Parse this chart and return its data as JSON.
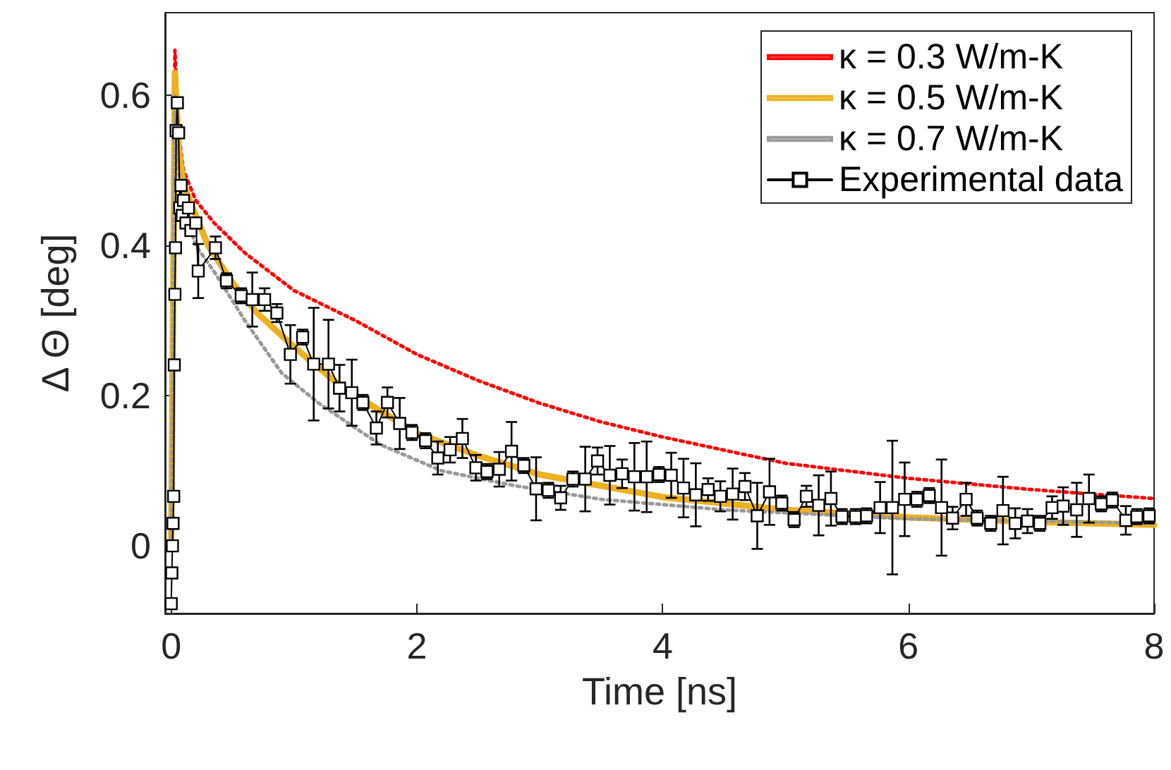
{
  "chart_data": {
    "type": "line",
    "xlabel": "Time [ns]",
    "ylabel": "Δ Θ [deg]",
    "xlim": [
      -0.05,
      8
    ],
    "xticks": [
      0,
      2,
      4,
      6,
      8
    ],
    "ylim": [
      -0.09,
      0.71
    ],
    "yticks": [
      0,
      0.2,
      0.4,
      0.6
    ],
    "grid": false,
    "legend": "top right",
    "series": [
      {
        "name": "κ = 0.3 W/m-K",
        "color": "#ff0000",
        "line_style": "dotted",
        "marker": "none",
        "x": [
          0,
          0.03,
          0.06,
          0.1,
          0.2,
          0.35,
          0.6,
          1,
          1.5,
          2,
          2.5,
          3,
          3.5,
          4,
          5,
          6,
          7,
          8
        ],
        "values": [
          0,
          0.66,
          0.55,
          0.5,
          0.46,
          0.43,
          0.39,
          0.34,
          0.3,
          0.255,
          0.22,
          0.19,
          0.165,
          0.145,
          0.11,
          0.09,
          0.075,
          0.063
        ]
      },
      {
        "name": "κ = 0.5 W/m-K",
        "color": "#edb120",
        "line_style": "solid",
        "marker": "none",
        "x": [
          0,
          0.03,
          0.06,
          0.1,
          0.2,
          0.3,
          0.5,
          0.7,
          1,
          1.4,
          2,
          2.5,
          3,
          4,
          5,
          6,
          7,
          8
        ],
        "values": [
          0,
          0.63,
          0.53,
          0.48,
          0.44,
          0.4,
          0.35,
          0.31,
          0.265,
          0.21,
          0.15,
          0.12,
          0.095,
          0.065,
          0.048,
          0.038,
          0.032,
          0.028
        ]
      },
      {
        "name": "κ = 0.7 W/m-K",
        "color": "#999999",
        "line_style": "dotted",
        "marker": "none",
        "x": [
          0,
          0.03,
          0.06,
          0.1,
          0.2,
          0.35,
          0.6,
          0.9,
          1.2,
          1.7,
          2.2,
          2.8,
          3.5,
          4.5,
          6,
          8
        ],
        "values": [
          0,
          0.6,
          0.5,
          0.45,
          0.4,
          0.365,
          0.3,
          0.23,
          0.19,
          0.135,
          0.1,
          0.08,
          0.062,
          0.048,
          0.036,
          0.03
        ]
      },
      {
        "name": "Experimental data",
        "color": "#000000",
        "line_style": "solid",
        "marker": "square",
        "x": [
          0,
          0.005,
          0.01,
          0.015,
          0.02,
          0.025,
          0.03,
          0.035,
          0.04,
          0.05,
          0.06,
          0.07,
          0.08,
          0.09,
          0.1,
          0.12,
          0.14,
          0.16,
          0.2,
          0.22,
          0.36,
          0.45,
          0.57,
          0.66,
          0.76,
          0.86,
          0.97,
          1.07,
          1.16,
          1.28,
          1.37,
          1.47,
          1.56,
          1.67,
          1.76,
          1.86,
          1.96,
          2.07,
          2.17,
          2.27,
          2.37,
          2.48,
          2.57,
          2.67,
          2.77,
          2.87,
          2.97,
          3.07,
          3.17,
          3.27,
          3.37,
          3.47,
          3.57,
          3.67,
          3.77,
          3.87,
          3.97,
          4.07,
          4.17,
          4.27,
          4.37,
          4.47,
          4.57,
          4.67,
          4.77,
          4.87,
          4.97,
          5.07,
          5.17,
          5.27,
          5.37,
          5.46,
          5.57,
          5.66,
          5.77,
          5.87,
          5.97,
          6.07,
          6.17,
          6.27,
          6.36,
          6.47,
          6.56,
          6.67,
          6.77,
          6.87,
          6.97,
          7.07,
          7.17,
          7.26,
          7.37,
          7.47,
          7.57,
          7.66,
          7.77,
          7.86,
          7.96
        ],
        "values": [
          -0.077,
          -0.036,
          0.0,
          0.03,
          0.066,
          0.241,
          0.335,
          0.397,
          0.553,
          0.59,
          0.55,
          0.45,
          0.48,
          0.44,
          0.46,
          0.43,
          0.45,
          0.42,
          0.43,
          0.366,
          0.397,
          0.353,
          0.333,
          0.328,
          0.328,
          0.31,
          0.255,
          0.278,
          0.242,
          0.242,
          0.21,
          0.204,
          0.191,
          0.157,
          0.191,
          0.163,
          0.151,
          0.14,
          0.117,
          0.128,
          0.143,
          0.104,
          0.099,
          0.102,
          0.126,
          0.107,
          0.076,
          0.074,
          0.064,
          0.089,
          0.089,
          0.113,
          0.094,
          0.096,
          0.092,
          0.092,
          0.095,
          0.094,
          0.077,
          0.068,
          0.075,
          0.066,
          0.069,
          0.079,
          0.04,
          0.072,
          0.057,
          0.035,
          0.066,
          0.054,
          0.063,
          0.039,
          0.039,
          0.04,
          0.051,
          0.051,
          0.062,
          0.062,
          0.067,
          0.051,
          0.037,
          0.062,
          0.037,
          0.03,
          0.047,
          0.03,
          0.033,
          0.03,
          0.051,
          0.053,
          0.048,
          0.063,
          0.056,
          0.061,
          0.034,
          0.039,
          0.04
        ],
        "errors": [
          null,
          null,
          null,
          null,
          null,
          null,
          null,
          null,
          null,
          null,
          null,
          null,
          null,
          null,
          null,
          null,
          null,
          null,
          null,
          0.036,
          0.015,
          0.01,
          0.01,
          0.036,
          0.015,
          0.012,
          0.039,
          0.01,
          0.075,
          0.059,
          0.031,
          0.044,
          0.01,
          0.022,
          0.02,
          0.034,
          0.01,
          0.01,
          0.022,
          0.017,
          0.026,
          0.017,
          0.01,
          0.023,
          0.039,
          0.01,
          0.042,
          0.01,
          0.016,
          0.01,
          0.043,
          0.018,
          0.039,
          0.019,
          0.045,
          0.047,
          0.01,
          0.03,
          0.039,
          0.042,
          0.015,
          0.02,
          0.034,
          0.018,
          0.044,
          0.044,
          0.01,
          0.01,
          0.014,
          0.04,
          0.036,
          0.01,
          0.01,
          0.01,
          0.034,
          0.089,
          0.049,
          0.01,
          0.01,
          0.064,
          0.015,
          0.022,
          0.01,
          0.01,
          0.045,
          0.02,
          0.016,
          0.01,
          0.015,
          0.025,
          0.036,
          0.032,
          0.01,
          0.01,
          0.019,
          0.01,
          0.01
        ]
      }
    ]
  }
}
